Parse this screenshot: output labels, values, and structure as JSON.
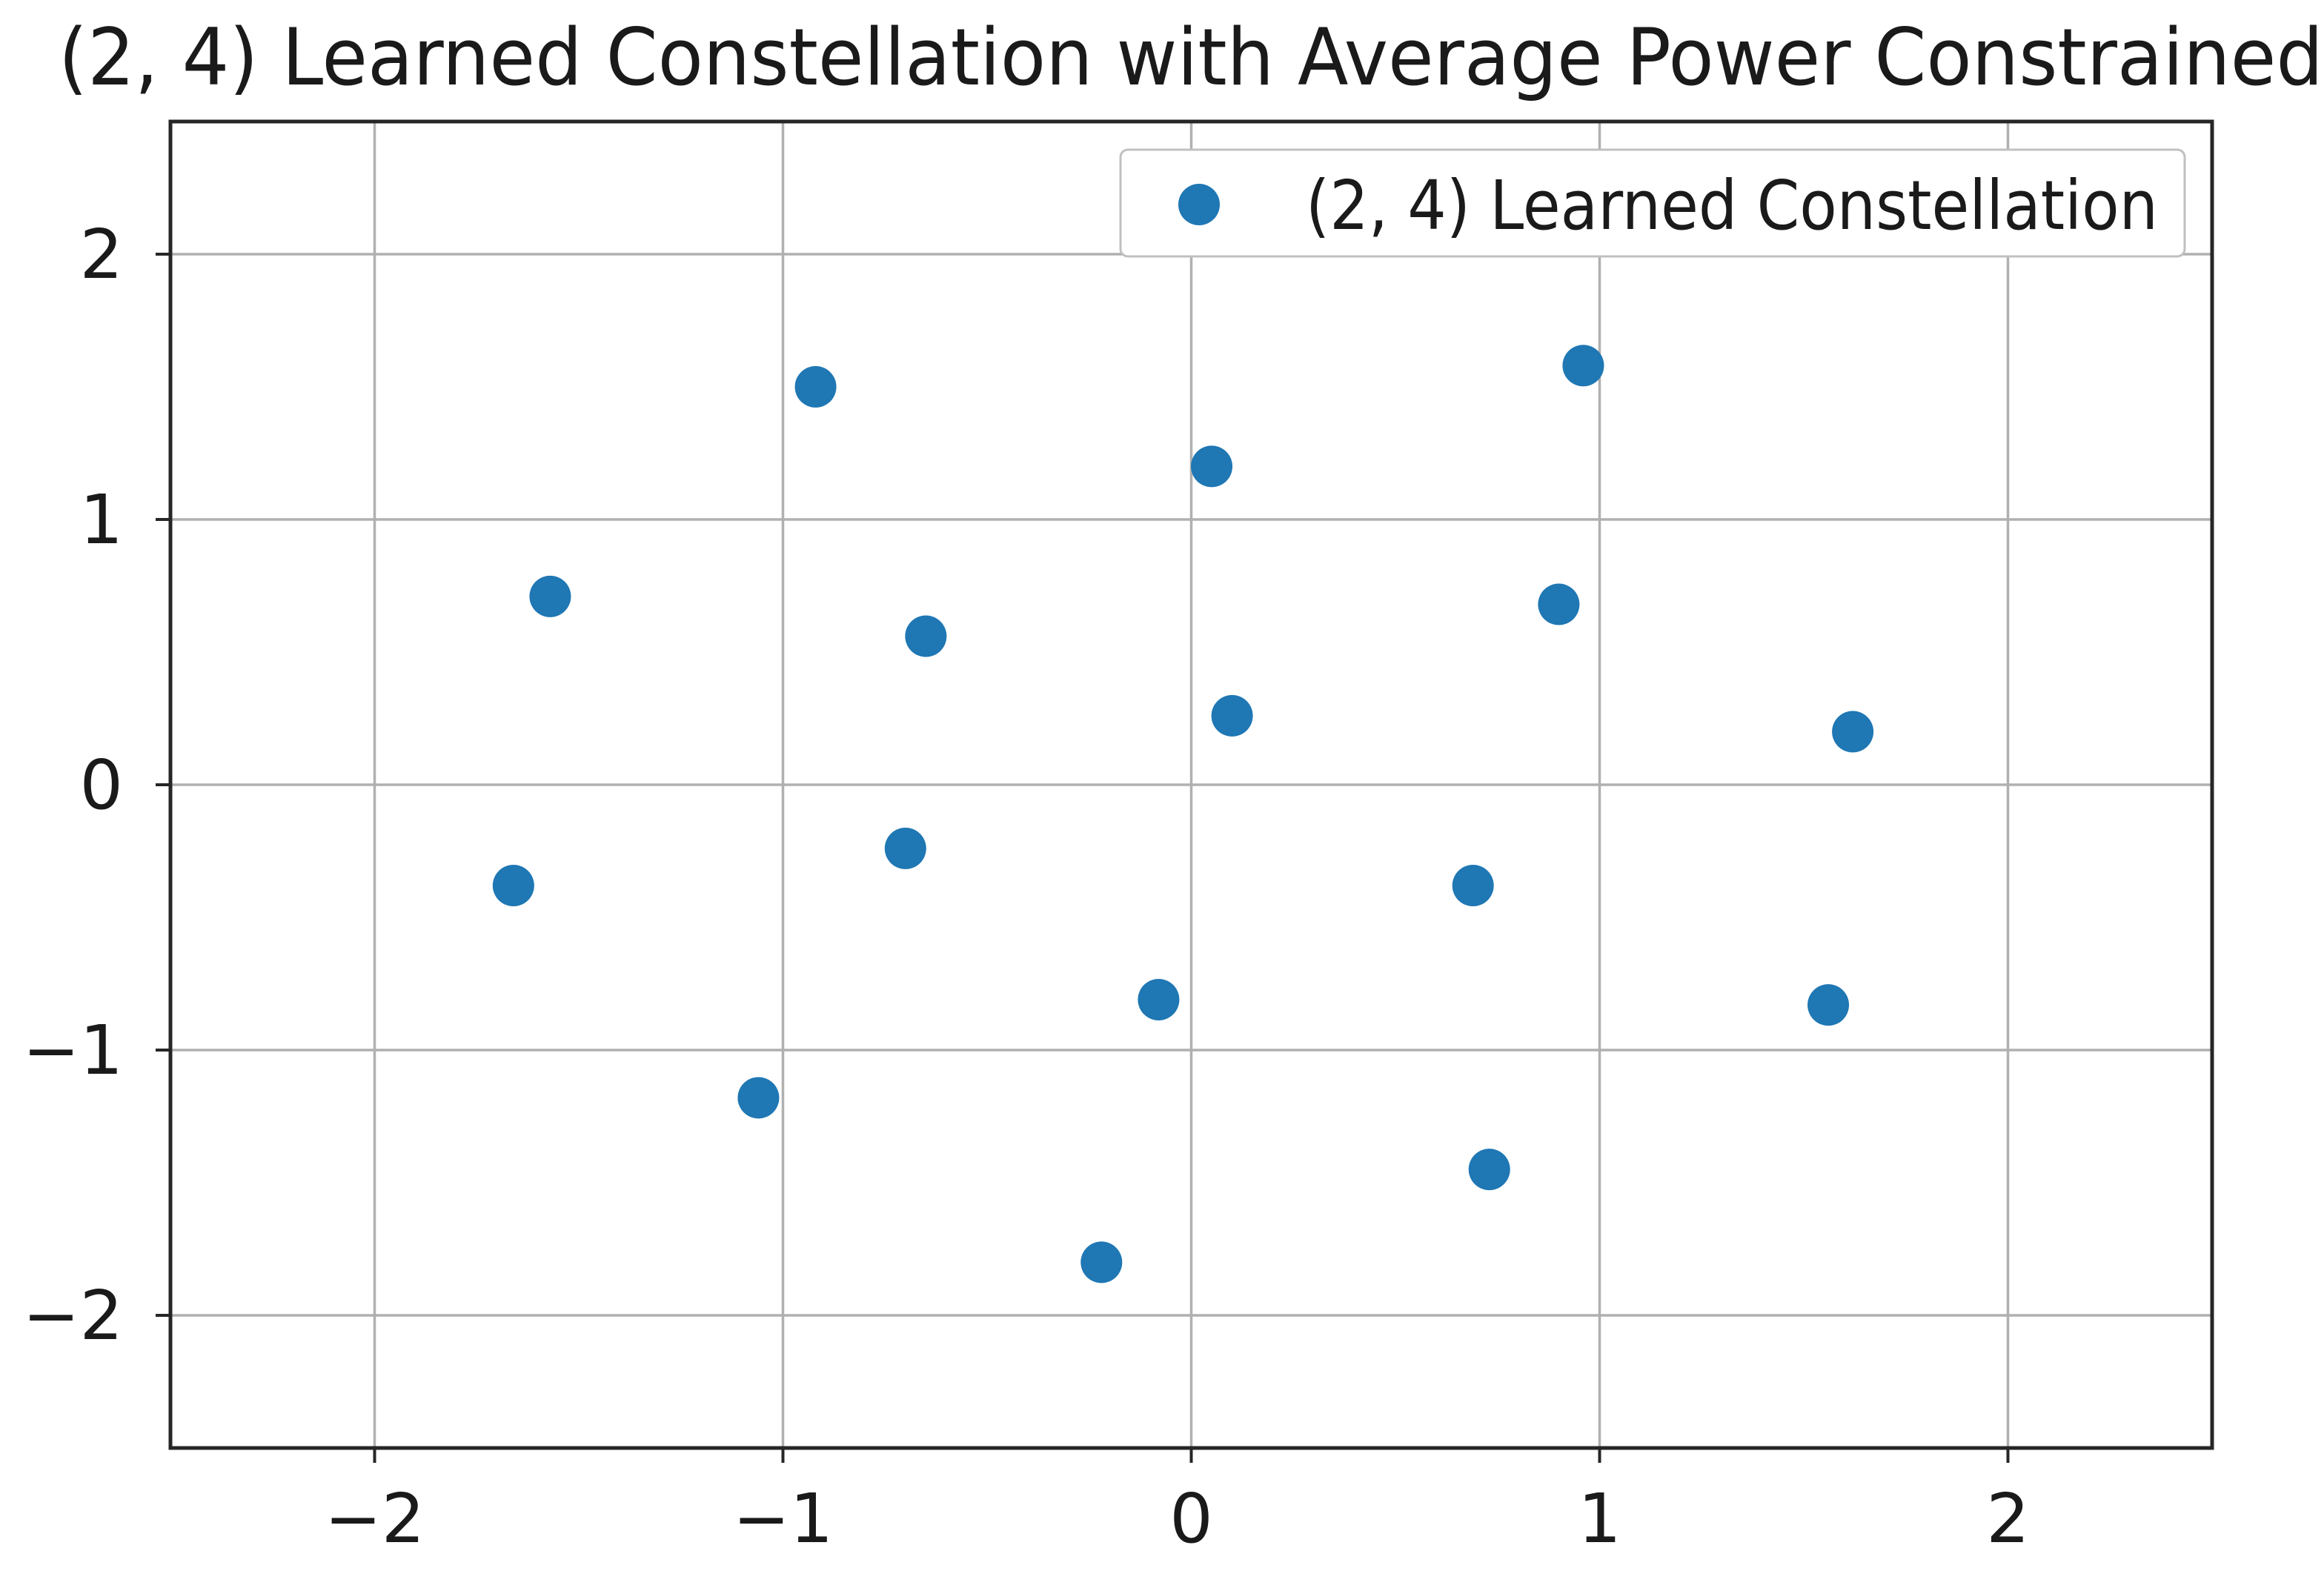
{
  "figure": {
    "background": "#ffffff"
  },
  "chart_data": {
    "type": "scatter",
    "title": "(2, 4) Learned Constellation with Average Power Constrained",
    "xlabel": "",
    "ylabel": "",
    "xlim": [
      -2.5,
      2.5
    ],
    "ylim": [
      -2.5,
      2.5
    ],
    "xticks": [
      -2,
      -1,
      0,
      1,
      2
    ],
    "yticks": [
      -2,
      -1,
      0,
      1,
      2
    ],
    "xtick_labels": [
      "−2",
      "−1",
      "0",
      "1",
      "2"
    ],
    "ytick_labels": [
      "−2",
      "−1",
      "0",
      "1",
      "2"
    ],
    "grid": true,
    "legend": {
      "label": "(2, 4) Learned Constellation",
      "position": "upper right",
      "marker": "circle-icon"
    },
    "series": [
      {
        "name": "(2, 4) Learned Constellation",
        "marker": "circle",
        "points": [
          [
            -0.92,
            1.5
          ],
          [
            0.05,
            1.2
          ],
          [
            0.96,
            1.58
          ],
          [
            -1.57,
            0.71
          ],
          [
            -0.65,
            0.56
          ],
          [
            0.9,
            0.68
          ],
          [
            0.1,
            0.26
          ],
          [
            1.62,
            0.2
          ],
          [
            -1.66,
            -0.38
          ],
          [
            -0.7,
            -0.24
          ],
          [
            -0.08,
            -0.81
          ],
          [
            -1.06,
            -1.18
          ],
          [
            -0.22,
            -1.8
          ],
          [
            0.69,
            -0.38
          ],
          [
            1.56,
            -0.83
          ],
          [
            0.73,
            -1.45
          ]
        ]
      }
    ],
    "colors": {
      "marker": "#1f77b4",
      "grid": "#b0b0b0",
      "spine": "#262626",
      "text": "#1a1a1a",
      "legend_border": "#c0c0c0",
      "legend_bg": "#ffffff"
    }
  }
}
